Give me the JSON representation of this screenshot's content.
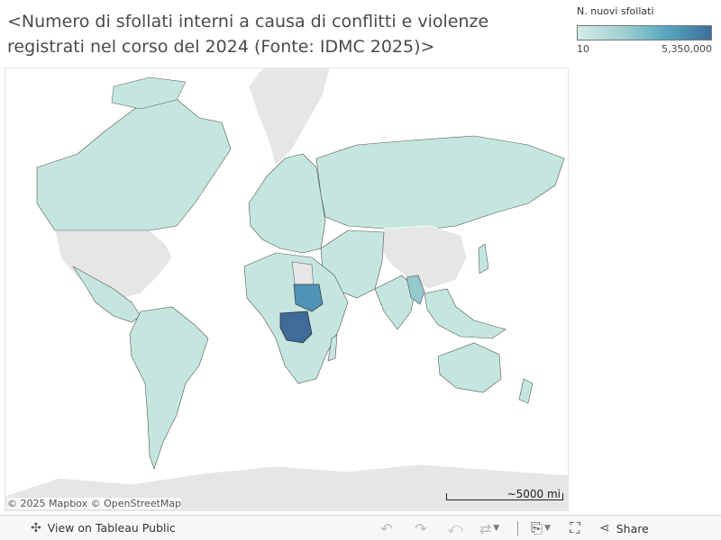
{
  "title": "<Numero di sfollati interni a causa di conflitti e violenze registrati nel corso del 2024 (Fonte: IDMC 2025)>",
  "legend": {
    "title": "N. nuovi sfollati",
    "min_label": "10",
    "max_label": "5,350,000",
    "color_low": "#d3ece6",
    "color_high": "#3d6f9c"
  },
  "map": {
    "no_data_color": "#e6e6e6",
    "base_color": "#c4e6de",
    "border_color": "#555555",
    "highlighted_countries": [
      {
        "name": "Sudan",
        "color": "#4f93b6"
      },
      {
        "name": "Repubblica Democratica del Congo",
        "color": "#3f6a99"
      },
      {
        "name": "Myanmar",
        "color": "#93c8cd"
      }
    ]
  },
  "attribution": {
    "mapbox": "© 2025 Mapbox",
    "osm": "© OpenStreetMap"
  },
  "scale_label": "~5000 mi",
  "toolbar": {
    "view_label": "View on Tableau Public",
    "share_label": "Share"
  }
}
